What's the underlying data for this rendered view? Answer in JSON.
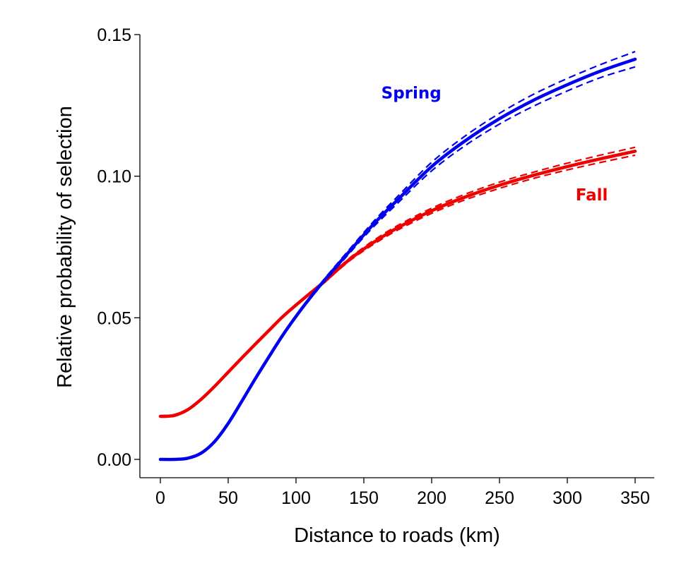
{
  "chart_data": {
    "type": "line",
    "title": "",
    "xlabel": "Distance to roads (km)",
    "ylabel": "Relative probability of selection",
    "xlim": [
      -12,
      360
    ],
    "ylim": [
      -0.007,
      0.158
    ],
    "xticks": [
      0,
      50,
      100,
      150,
      200,
      250,
      300,
      350
    ],
    "xtick_labels": [
      "0",
      "50",
      "100",
      "150",
      "200",
      "250",
      "300",
      "350"
    ],
    "yticks": [
      0.0,
      0.05,
      0.1,
      0.15
    ],
    "ytick_labels": [
      "0.00",
      "0.05",
      "0.10",
      "0.15"
    ],
    "grid": false,
    "legend": "none",
    "series": [
      {
        "name": "Spring",
        "color": "#0000ee",
        "x": [
          0,
          10,
          20,
          30,
          40,
          50,
          60,
          70,
          80,
          90,
          100,
          110,
          120,
          130,
          140,
          150,
          160,
          175,
          200,
          225,
          250,
          275,
          300,
          325,
          350
        ],
        "values": [
          0.0,
          0.0,
          0.0004,
          0.0022,
          0.0063,
          0.0127,
          0.0205,
          0.0285,
          0.0362,
          0.0437,
          0.0505,
          0.0568,
          0.0627,
          0.0683,
          0.0738,
          0.0793,
          0.0845,
          0.0917,
          0.1034,
          0.1126,
          0.1203,
          0.1268,
          0.1323,
          0.1372,
          0.1413
        ],
        "upper": [
          0.0,
          0.0,
          0.0005,
          0.0024,
          0.0066,
          0.0131,
          0.0209,
          0.0289,
          0.0366,
          0.0441,
          0.0509,
          0.0572,
          0.0632,
          0.0689,
          0.0745,
          0.0801,
          0.0855,
          0.0929,
          0.1049,
          0.1143,
          0.1222,
          0.1289,
          0.1345,
          0.1395,
          0.144
        ],
        "lower": [
          0.0,
          0.0,
          0.0003,
          0.002,
          0.006,
          0.0123,
          0.0201,
          0.0281,
          0.0358,
          0.0433,
          0.0501,
          0.0564,
          0.0622,
          0.0677,
          0.0731,
          0.0785,
          0.0835,
          0.0905,
          0.1019,
          0.1109,
          0.1184,
          0.1247,
          0.1301,
          0.1349,
          0.1386
        ]
      },
      {
        "name": "Fall",
        "color": "#ee0000",
        "x": [
          0,
          10,
          20,
          30,
          40,
          50,
          60,
          70,
          80,
          90,
          100,
          110,
          120,
          130,
          140,
          150,
          160,
          175,
          200,
          225,
          250,
          275,
          300,
          325,
          350
        ],
        "values": [
          0.0152,
          0.0155,
          0.0175,
          0.0212,
          0.0258,
          0.0308,
          0.0358,
          0.0407,
          0.0455,
          0.0503,
          0.0545,
          0.0585,
          0.0624,
          0.0667,
          0.0708,
          0.0743,
          0.0775,
          0.0818,
          0.0878,
          0.0927,
          0.0968,
          0.1003,
          0.1034,
          0.1062,
          0.1088
        ],
        "upper": [
          0.0155,
          0.0158,
          0.0178,
          0.0215,
          0.0261,
          0.0311,
          0.0361,
          0.041,
          0.0458,
          0.0506,
          0.0548,
          0.0588,
          0.0628,
          0.0671,
          0.0713,
          0.0749,
          0.0782,
          0.0826,
          0.0887,
          0.0937,
          0.0979,
          0.1014,
          0.1046,
          0.1075,
          0.1102
        ],
        "lower": [
          0.0149,
          0.0152,
          0.0172,
          0.0209,
          0.0255,
          0.0305,
          0.0355,
          0.0404,
          0.0452,
          0.05,
          0.0542,
          0.0582,
          0.062,
          0.0663,
          0.0703,
          0.0737,
          0.0768,
          0.081,
          0.0869,
          0.0917,
          0.0957,
          0.0992,
          0.1022,
          0.1049,
          0.1074
        ]
      }
    ],
    "annotations": [
      {
        "text": "Spring",
        "x": 185,
        "y": 0.1275,
        "color": "#0000ee"
      },
      {
        "text": "Fall",
        "x": 318,
        "y": 0.0915,
        "color": "#ee0000"
      }
    ]
  }
}
